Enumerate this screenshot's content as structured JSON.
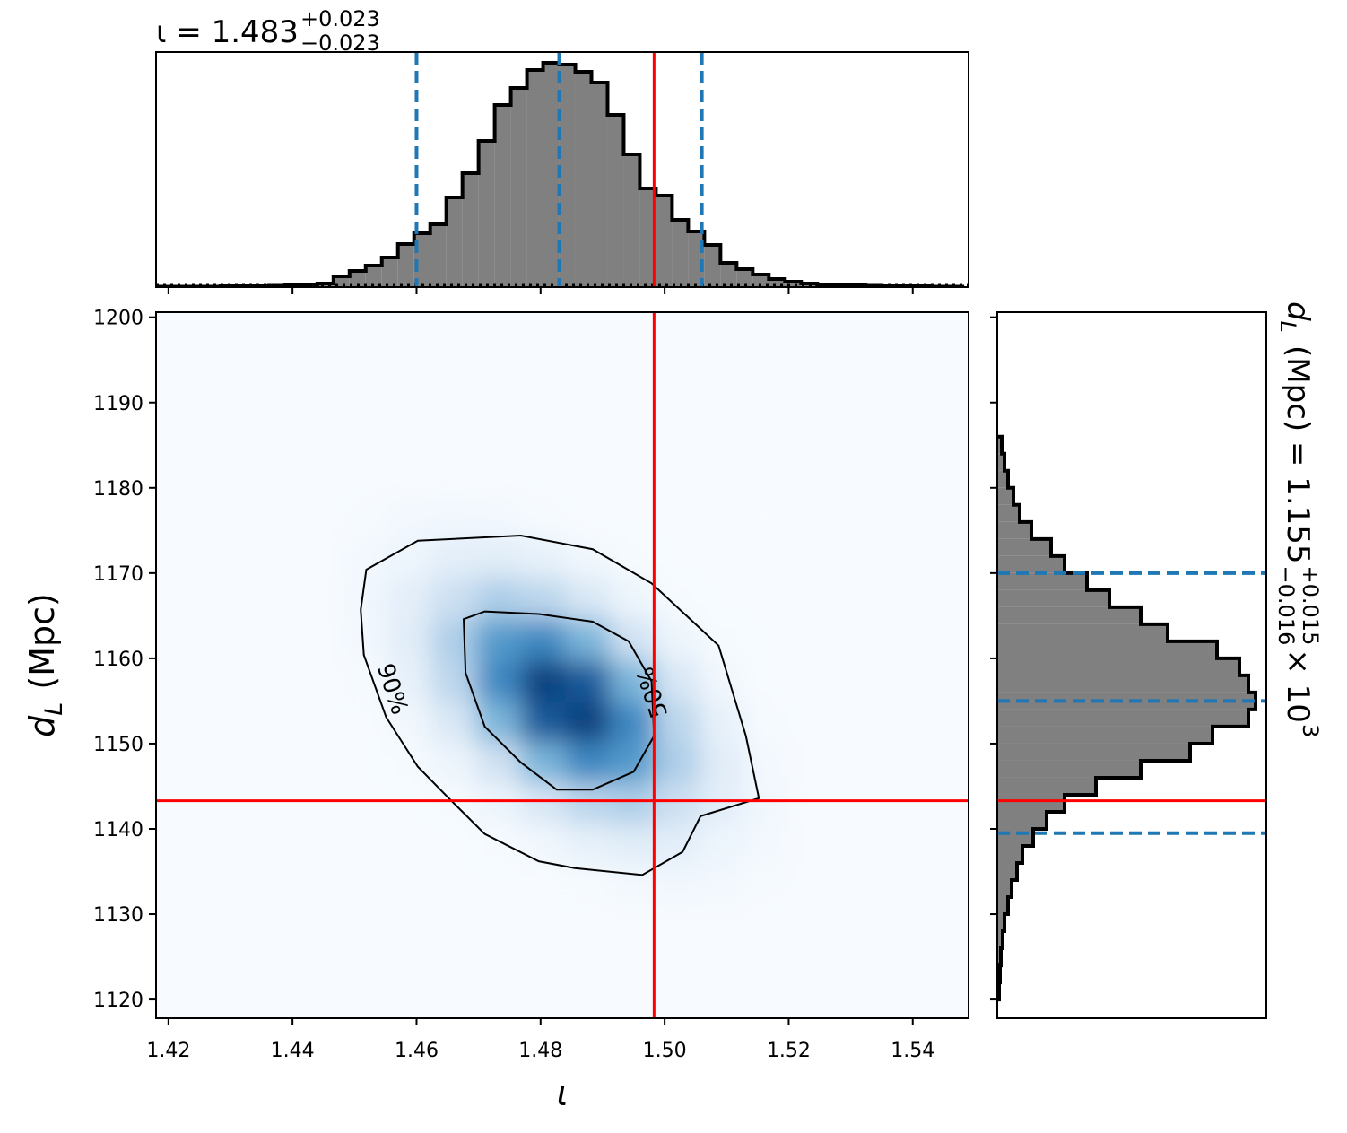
{
  "chart_data": [
    {
      "type": "histogram",
      "orientation": "vertical",
      "title": {
        "main": "ι = 1.483",
        "upper": "+0.023",
        "lower": "−0.023"
      },
      "bins": [
        1.418,
        1.4206,
        1.4232,
        1.4258,
        1.4284,
        1.431,
        1.4336,
        1.4362,
        1.4388,
        1.4414,
        1.444,
        1.4466,
        1.4492,
        1.4518,
        1.4544,
        1.457,
        1.4596,
        1.4622,
        1.4648,
        1.4674,
        1.47,
        1.4726,
        1.4752,
        1.4778,
        1.4804,
        1.483,
        1.4856,
        1.4882,
        1.4908,
        1.4934,
        1.496,
        1.4986,
        1.5012,
        1.5038,
        1.5064,
        1.509,
        1.5116,
        1.5142,
        1.5168,
        1.5194,
        1.522,
        1.5246,
        1.5272,
        1.5298,
        1.5324,
        1.535,
        1.5376,
        1.5402,
        1.5428,
        1.5454,
        1.548
      ],
      "values": [
        0.5,
        0.5,
        0.5,
        0.5,
        1,
        1,
        1,
        1.5,
        2,
        2.5,
        4,
        12,
        18,
        24,
        33,
        48,
        60,
        70,
        100,
        127,
        163,
        203,
        222,
        242,
        250,
        248,
        240,
        228,
        192,
        148,
        110,
        102,
        75,
        62,
        47,
        27,
        20,
        14,
        9,
        6,
        4,
        3,
        2,
        2,
        1.5,
        1,
        1,
        1,
        0.5,
        0.5
      ],
      "color": "#808080",
      "edge_color": "#000000",
      "prior": 2,
      "quantiles": [
        1.46,
        1.483,
        1.506
      ],
      "quantile_color": "#1f77b4",
      "truth": 1.4983,
      "truth_color": "#ff0000",
      "xlim": [
        1.418,
        1.549
      ],
      "ylim": [
        0,
        262
      ],
      "xticks": [
        1.42,
        1.44,
        1.46,
        1.48,
        1.5,
        1.52,
        1.54
      ],
      "tick_labels": false
    },
    {
      "type": "heatmap",
      "xlabel": "ι",
      "ylabel": {
        "symbol": "d",
        "sub": "L",
        "unit": "(Mpc)"
      },
      "x_edges": [
        1.448,
        1.4552,
        1.4624,
        1.4696,
        1.4768,
        1.484,
        1.4912,
        1.4984,
        1.5056,
        1.5128,
        1.52
      ],
      "y_edges": [
        1131,
        1135.8,
        1140.6,
        1145.4,
        1150.2,
        1155,
        1159.8,
        1164.6,
        1169.4,
        1174.2,
        1179
      ],
      "z": [
        [
          0,
          0,
          0,
          0,
          0,
          0.01,
          0.02,
          0.03,
          0.02,
          0.01
        ],
        [
          0,
          0,
          0,
          0.01,
          0.03,
          0.08,
          0.11,
          0.1,
          0.05,
          0.02
        ],
        [
          0,
          0,
          0.01,
          0.05,
          0.16,
          0.28,
          0.32,
          0.22,
          0.1,
          0.03
        ],
        [
          0,
          0.01,
          0.05,
          0.2,
          0.46,
          0.66,
          0.58,
          0.32,
          0.11,
          0.02
        ],
        [
          0,
          0.03,
          0.16,
          0.46,
          0.84,
          0.94,
          0.66,
          0.28,
          0.08,
          0.01
        ],
        [
          0.01,
          0.08,
          0.28,
          0.66,
          0.94,
          0.84,
          0.46,
          0.16,
          0.03,
          0
        ],
        [
          0.02,
          0.11,
          0.32,
          0.58,
          0.66,
          0.46,
          0.2,
          0.05,
          0.01,
          0
        ],
        [
          0.03,
          0.1,
          0.22,
          0.32,
          0.28,
          0.16,
          0.05,
          0.01,
          0,
          0
        ],
        [
          0.02,
          0.05,
          0.1,
          0.11,
          0.08,
          0.03,
          0.01,
          0,
          0,
          0
        ],
        [
          0.01,
          0.02,
          0.03,
          0.02,
          0.01,
          0,
          0,
          0,
          0,
          0
        ]
      ],
      "cmap": [
        "#f7fbff",
        "#c6dbef",
        "#6baed6",
        "#2171b5",
        "#08306b"
      ],
      "contours": [
        {
          "label": "90%",
          "x": [
            1.4519,
            1.4602,
            1.4768,
            1.4884,
            1.4979,
            1.5087,
            1.5109,
            1.5131,
            1.5152,
            1.5058,
            1.5029,
            1.4964,
            1.4855,
            1.4797,
            1.471,
            1.4652,
            1.4602,
            1.4551,
            1.4515,
            1.451
          ],
          "y": [
            1170.4,
            1173.8,
            1174.4,
            1172.8,
            1168.8,
            1161.5,
            1156.2,
            1150.9,
            1143.6,
            1141.5,
            1137.3,
            1134.6,
            1135.4,
            1136.2,
            1139.4,
            1143.6,
            1147.3,
            1153.1,
            1160.4,
            1165.7
          ]
        },
        {
          "label": "50%",
          "x": [
            1.4676,
            1.471,
            1.4797,
            1.4884,
            1.4942,
            1.4979,
            1.4983,
            1.495,
            1.4884,
            1.4826,
            1.4768,
            1.471,
            1.4679
          ],
          "y": [
            1164.6,
            1165.5,
            1165.2,
            1164.3,
            1162,
            1157.3,
            1150.9,
            1146.7,
            1144.6,
            1144.6,
            1147.8,
            1152,
            1158.3
          ]
        }
      ],
      "truth": [
        1.4983,
        1143.3
      ],
      "truth_color": "#ff0000",
      "xlim": [
        1.418,
        1.549
      ],
      "ylim": [
        1117.8,
        1200.6
      ],
      "xticks": [
        1.42,
        1.44,
        1.46,
        1.48,
        {
          "value": 1.5,
          "label": "1.50"
        },
        1.52,
        1.54
      ],
      "yticks": [
        1120,
        1130,
        1140,
        1150,
        1160,
        1170,
        1180,
        1190,
        1200
      ]
    },
    {
      "type": "histogram",
      "orientation": "horizontal",
      "title": {
        "symbol": "d",
        "sub": "L",
        "main": "(Mpc) = 1.155",
        "upper": "+0.015",
        "lower": "−0.016",
        "scale": "× 10",
        "power": "3"
      },
      "bins": [
        1120,
        1122,
        1124,
        1126,
        1128,
        1130,
        1132,
        1134,
        1136,
        1138,
        1140,
        1142,
        1144,
        1146,
        1148,
        1150,
        1152,
        1154,
        1156,
        1158,
        1160,
        1162,
        1164,
        1166,
        1168,
        1170,
        1172,
        1174,
        1176,
        1178,
        1180,
        1182,
        1184,
        1186
      ],
      "values": [
        2,
        3,
        4,
        6,
        8,
        12,
        16,
        22,
        28,
        40,
        55,
        75,
        110,
        160,
        215,
        240,
        280,
        288,
        280,
        270,
        245,
        190,
        160,
        125,
        100,
        75,
        60,
        38,
        25,
        18,
        12,
        8,
        5
      ],
      "color": "#808080",
      "edge_color": "#000000",
      "quantiles": [
        1139.5,
        1155,
        1170
      ],
      "quantile_color": "#1f77b4",
      "truth": 1143.3,
      "truth_color": "#ff0000",
      "xlim": [
        0,
        300
      ],
      "ylim": [
        1117.8,
        1200.6
      ],
      "yticks": [
        1120,
        1130,
        1140,
        1150,
        1160,
        1170,
        1180,
        1190,
        1200
      ],
      "tick_labels": false
    }
  ]
}
